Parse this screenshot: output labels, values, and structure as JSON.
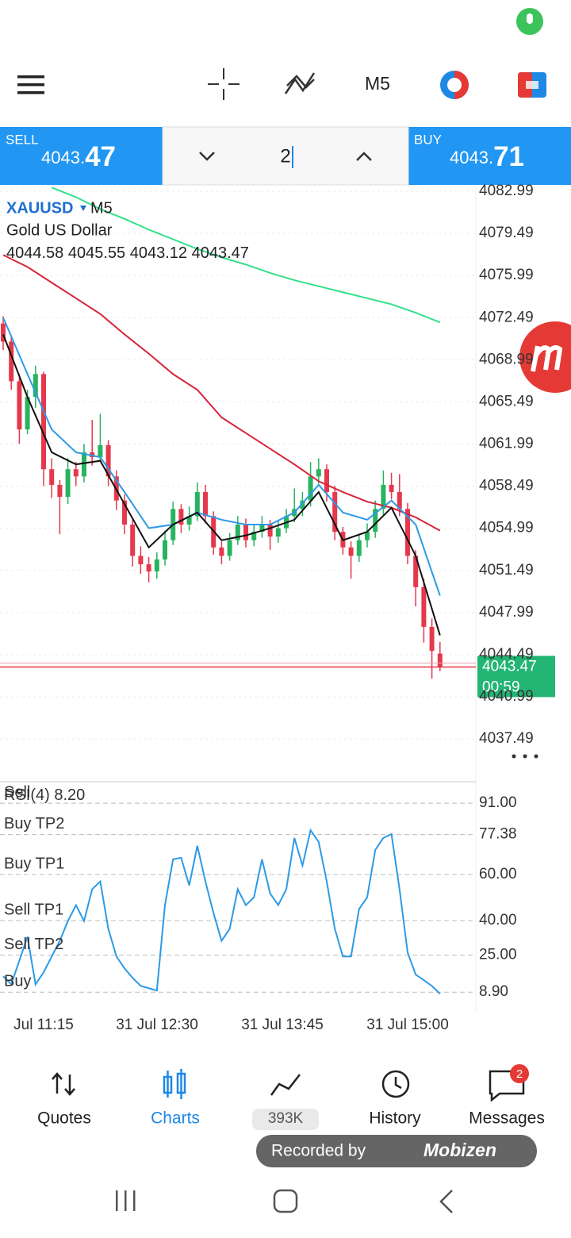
{
  "toolbar": {
    "timeframe": "M5"
  },
  "trade": {
    "sell_label": "SELL",
    "sell_price": "4043.",
    "sell_pips": "47",
    "volume": "2",
    "buy_label": "BUY",
    "buy_price": "4043.",
    "buy_pips": "71"
  },
  "chart": {
    "symbol": "XAUUSD",
    "timeframe": "M5",
    "description": "Gold US Dollar",
    "ohlc": [
      4044.58,
      4045.55,
      4043.12,
      4043.47
    ],
    "ylim": [
      4034.27,
      4083.45
    ],
    "yticks": [
      4082.99,
      4079.49,
      4075.99,
      4072.49,
      4068.99,
      4065.49,
      4061.99,
      4058.49,
      4054.99,
      4051.49,
      4047.99,
      4044.49,
      4040.99,
      4037.49
    ],
    "current_price": 4043.47,
    "countdown": "00:59",
    "candles": [
      [
        4072.0,
        4072.6,
        4069.8,
        4070.5
      ],
      [
        4070.5,
        4071.0,
        4066.5,
        4067.2
      ],
      [
        4067.2,
        4067.8,
        4062.0,
        4063.2
      ],
      [
        4063.2,
        4066.5,
        4062.8,
        4065.9
      ],
      [
        4065.9,
        4068.5,
        4065.0,
        4067.8
      ],
      [
        4067.8,
        4068.0,
        4058.5,
        4059.9
      ],
      [
        4059.9,
        4060.8,
        4057.5,
        4058.6
      ],
      [
        4058.6,
        4059.0,
        4054.5,
        4057.6
      ],
      [
        4057.6,
        4060.8,
        4057.0,
        4059.9
      ],
      [
        4059.9,
        4060.5,
        4058.5,
        4059.3
      ],
      [
        4059.3,
        4062.0,
        4058.8,
        4061.3
      ],
      [
        4061.3,
        4064.0,
        4060.2,
        4060.9
      ],
      [
        4060.9,
        4064.5,
        4060.5,
        4061.9
      ],
      [
        4061.9,
        4062.3,
        4058.5,
        4059.3
      ],
      [
        4059.3,
        4059.8,
        4056.5,
        4057.3
      ],
      [
        4057.3,
        4057.8,
        4054.5,
        4055.3
      ],
      [
        4055.3,
        4055.8,
        4051.8,
        4052.7
      ],
      [
        4052.7,
        4053.5,
        4051.2,
        4052.0
      ],
      [
        4052.0,
        4052.6,
        4050.5,
        4051.4
      ],
      [
        4051.4,
        4053.0,
        4050.8,
        4052.4
      ],
      [
        4052.4,
        4054.8,
        4051.9,
        4054.0
      ],
      [
        4054.0,
        4057.2,
        4053.6,
        4056.6
      ],
      [
        4056.6,
        4057.0,
        4054.6,
        4055.3
      ],
      [
        4055.3,
        4056.8,
        4054.8,
        4056.0
      ],
      [
        4056.0,
        4058.8,
        4055.6,
        4058.0
      ],
      [
        4058.0,
        4058.6,
        4055.4,
        4056.0
      ],
      [
        4056.0,
        4056.4,
        4052.8,
        4053.4
      ],
      [
        4053.4,
        4053.9,
        4052.0,
        4052.7
      ],
      [
        4052.7,
        4054.6,
        4052.3,
        4054.0
      ],
      [
        4054.0,
        4056.0,
        4053.6,
        4055.3
      ],
      [
        4055.3,
        4055.8,
        4053.4,
        4054.0
      ],
      [
        4054.0,
        4055.3,
        4053.5,
        4054.7
      ],
      [
        4054.7,
        4056.0,
        4054.2,
        4055.3
      ],
      [
        4055.3,
        4055.7,
        4053.2,
        4054.3
      ],
      [
        4054.3,
        4055.6,
        4053.8,
        4055.0
      ],
      [
        4055.0,
        4056.6,
        4054.6,
        4056.0
      ],
      [
        4056.0,
        4058.3,
        4055.5,
        4056.6
      ],
      [
        4056.6,
        4058.0,
        4056.0,
        4057.3
      ],
      [
        4057.3,
        4060.5,
        4056.8,
        4059.3
      ],
      [
        4059.3,
        4060.8,
        4058.7,
        4059.9
      ],
      [
        4059.9,
        4060.3,
        4057.2,
        4058.0
      ],
      [
        4058.0,
        4058.5,
        4054.0,
        4054.7
      ],
      [
        4054.7,
        4055.1,
        4052.8,
        4053.4
      ],
      [
        4053.4,
        4053.9,
        4050.8,
        4052.7
      ],
      [
        4052.7,
        4054.5,
        4052.2,
        4054.0
      ],
      [
        4054.0,
        4055.4,
        4053.4,
        4054.7
      ],
      [
        4054.7,
        4057.3,
        4054.2,
        4056.6
      ],
      [
        4056.6,
        4059.8,
        4056.0,
        4058.6
      ],
      [
        4058.6,
        4059.6,
        4057.4,
        4058.0
      ],
      [
        4058.0,
        4059.5,
        4056.0,
        4056.6
      ],
      [
        4056.6,
        4057.1,
        4052.0,
        4052.7
      ],
      [
        4052.7,
        4053.2,
        4048.5,
        4050.1
      ],
      [
        4050.1,
        4050.8,
        4045.5,
        4046.8
      ],
      [
        4046.8,
        4047.5,
        4042.5,
        4044.8
      ],
      [
        4044.58,
        4045.55,
        4043.12,
        4043.47
      ]
    ],
    "lines": [
      {
        "color": "#33e08a",
        "values": [
          null,
          null,
          4083.3,
          4082.5,
          4081.5,
          4080.7,
          4079.8,
          4079.0,
          4078.2,
          4077.5,
          4076.9,
          4076.2,
          4075.6,
          4075.1,
          4074.6,
          4074.1,
          4073.6,
          4072.9,
          4072.1
        ]
      },
      {
        "color": "#d9233a",
        "values": [
          4077.7,
          4076.7,
          4075.4,
          4074.1,
          4072.8,
          4071.1,
          4069.5,
          4067.8,
          4066.5,
          4064.2,
          4062.9,
          4061.6,
          4060.3,
          4058.9,
          4058.0,
          4057.2,
          4056.7,
          4055.9,
          4054.8
        ]
      },
      {
        "color": "#2c9ae6",
        "values": [
          4072.5,
          4067.8,
          4063.2,
          4061.3,
          4060.9,
          4058.0,
          4055.0,
          4055.3,
          4056.3,
          4055.7,
          4055.3,
          4055.3,
          4056.3,
          4058.6,
          4056.3,
          4055.7,
          4057.3,
          4055.3,
          4049.4
        ]
      },
      {
        "color": "#111111",
        "values": [
          4071.1,
          4065.9,
          4061.3,
          4060.3,
          4060.6,
          4057.0,
          4053.4,
          4055.3,
          4056.3,
          4054.0,
          4054.4,
          4055.0,
          4055.7,
          4058.0,
          4054.0,
          4054.7,
          4056.7,
          4052.7,
          4046.1
        ]
      }
    ]
  },
  "rsi": {
    "title": "RSI(4)",
    "value_label": "8.20",
    "ylim": [
      0,
      100
    ],
    "color": "#2c9ae6",
    "levels": [
      {
        "value": 91,
        "label": "91.00",
        "name": "Sell"
      },
      {
        "value": 77.38,
        "label": "77.38",
        "name": "Buy TP2"
      },
      {
        "value": 60,
        "label": "60.00",
        "name": "Buy TP1"
      },
      {
        "value": 40,
        "label": "40.00",
        "name": "Sell TP1"
      },
      {
        "value": 25,
        "label": "25.00",
        "name": "Sell TP2"
      },
      {
        "value": 8.9,
        "label": "8.90",
        "name": "Buy"
      }
    ],
    "values": [
      15.8,
      12.3,
      22.6,
      33.0,
      12.3,
      17.5,
      24.4,
      31.2,
      39.8,
      46.7,
      39.8,
      53.6,
      57.0,
      36.4,
      24.4,
      19.2,
      15.1,
      11.6,
      10.6,
      9.6,
      46.7,
      66.6,
      67.3,
      55.3,
      72.5,
      57.0,
      43.3,
      31.2,
      36.4,
      53.6,
      46.7,
      50.1,
      66.6,
      51.8,
      46.7,
      53.6,
      75.9,
      63.9,
      79.3,
      74.2,
      57.0,
      36.4,
      24.4,
      24.4,
      45.0,
      50.1,
      70.7,
      75.9,
      77.6,
      53.6,
      26.1,
      16.5,
      14.1,
      11.6,
      8.2
    ]
  },
  "time_labels": [
    "Jul 11:15",
    "31 Jul 12:30",
    "31 Jul 13:45",
    "31 Jul 15:00"
  ],
  "nav": {
    "tabs": [
      "Quotes",
      "Charts",
      "393K",
      "History",
      "Messages"
    ],
    "badge": "2"
  },
  "recorder": {
    "text": "Recorded by",
    "brand": "Mobizen"
  }
}
